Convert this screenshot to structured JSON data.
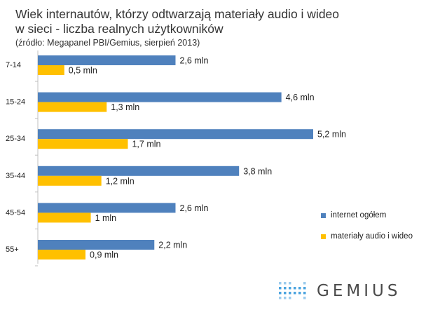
{
  "header": {
    "title_line1": "Wiek internautów, którzy odtwarzają materiały audio i wideo",
    "title_line2": "w sieci - liczba realnych użytkowników",
    "source": "(źródło: Megapanel PBI/Gemius, sierpień 2013)"
  },
  "chart_data": {
    "type": "bar",
    "orientation": "horizontal",
    "categories": [
      "7-14",
      "15-24",
      "25-34",
      "35-44",
      "45-54",
      "55+"
    ],
    "series": [
      {
        "name": "internet ogółem",
        "color": "#4f81bd",
        "values": [
          2.6,
          4.6,
          5.2,
          3.8,
          2.6,
          2.2
        ],
        "labels": [
          "2,6 mln",
          "4,6 mln",
          "5,2 mln",
          "3,8 mln",
          "2,6 mln",
          "2,2 mln"
        ]
      },
      {
        "name": "materiały audio i wideo",
        "color": "#ffc000",
        "values": [
          0.5,
          1.3,
          1.7,
          1.2,
          1.0,
          0.9
        ],
        "labels": [
          "0,5 mln",
          "1,3 mln",
          "1,7 mln",
          "1,2 mln",
          "1 mln",
          "0,9 mln"
        ]
      }
    ],
    "xlim": [
      0,
      5.2
    ],
    "grid": false,
    "legend_position": "right"
  },
  "legend": {
    "items": [
      {
        "label": "internet ogółem",
        "color": "#4f81bd"
      },
      {
        "label": "materiały audio i wideo",
        "color": "#ffc000"
      }
    ]
  },
  "logo": {
    "text": "GEMIUS",
    "dot_color": "#4aa3df"
  }
}
